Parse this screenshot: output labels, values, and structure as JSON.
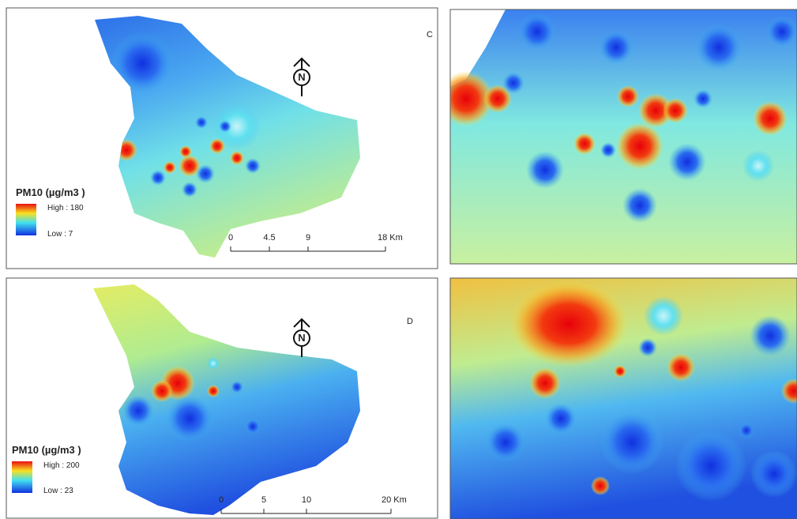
{
  "panels": [
    {
      "label": "C",
      "north": "N",
      "legend": {
        "title": "PM10 (µg/m3 )",
        "high": "High : 180",
        "low": "Low : 7"
      },
      "scale": [
        "0",
        "4.5",
        "9",
        "18 Km"
      ]
    },
    {
      "label": "D",
      "north": "N",
      "legend": {
        "title": "PM10 (µg/m3 )",
        "high": "High : 200",
        "low": "Low : 23"
      },
      "scale": [
        "0",
        "5",
        "10",
        "20 Km"
      ]
    }
  ]
}
